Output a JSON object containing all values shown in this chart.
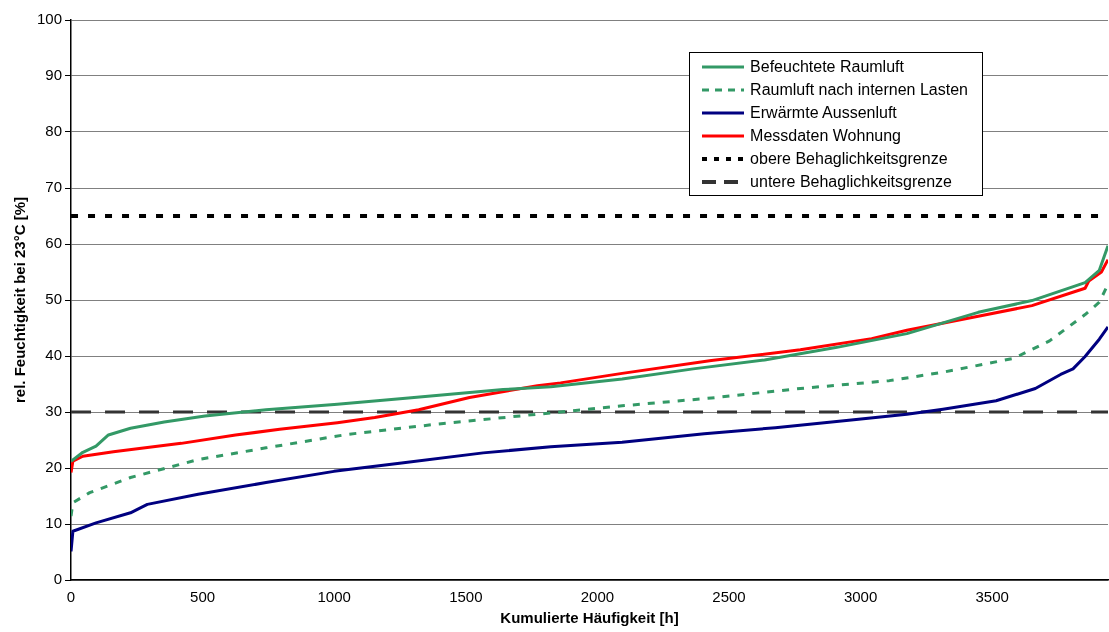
{
  "chart_data": {
    "type": "line",
    "xlabel": "Kumulierte Häufigkeit [h]",
    "ylabel": "rel. Feuchtigkeit bei 23°C [%]",
    "xlim": [
      0,
      3940
    ],
    "xticks": [
      0,
      500,
      1000,
      1500,
      2000,
      2500,
      3000,
      3500
    ],
    "ylim": [
      0,
      100
    ],
    "yticks": [
      0,
      10,
      20,
      30,
      40,
      50,
      60,
      70,
      80,
      90,
      100
    ],
    "grid": "y",
    "legend": "top right",
    "marker": "none",
    "series": [
      {
        "name": "Befeuchtete Raumluft",
        "color": "#339966",
        "line_style": "solid",
        "x": [
          0,
          45,
          95,
          142,
          226,
          354,
          509,
          741,
          1012,
          1282,
          1642,
          1823,
          2094,
          2364,
          2635,
          2905,
          3176,
          3447,
          3651,
          3853,
          3907,
          3940
        ],
        "values": [
          21.2,
          22.8,
          23.9,
          25.9,
          27.1,
          28.2,
          29.3,
          30.4,
          31.4,
          32.5,
          34.0,
          34.5,
          35.9,
          37.7,
          39.3,
          41.5,
          44.0,
          47.8,
          49.9,
          53.1,
          55.3,
          59.7
        ]
      },
      {
        "name": "Raumluft nach internen Lasten",
        "color": "#339966",
        "line_style": "dashed",
        "x": [
          0,
          7,
          71,
          226,
          483,
          741,
          1050,
          1385,
          1900,
          2094,
          2433,
          2771,
          3109,
          3313,
          3583,
          3718,
          3853,
          3907,
          3940
        ],
        "values": [
          11.4,
          13.8,
          15.6,
          18.3,
          21.5,
          23.6,
          26.0,
          27.8,
          30.2,
          31.1,
          32.5,
          34.2,
          35.6,
          37.1,
          39.6,
          42.7,
          47.4,
          49.6,
          52.8
        ]
      },
      {
        "name": "Erwärmte Aussenluft",
        "color": "#000080",
        "line_style": "solid",
        "x": [
          0,
          7,
          95,
          226,
          290,
          483,
          741,
          999,
          1256,
          1566,
          1823,
          2094,
          2406,
          2676,
          2974,
          3176,
          3313,
          3515,
          3664,
          3760,
          3807,
          3853,
          3907,
          3940
        ],
        "values": [
          5.1,
          8.7,
          10.2,
          12.0,
          13.5,
          15.3,
          17.4,
          19.4,
          20.9,
          22.7,
          23.8,
          24.6,
          26.1,
          27.2,
          28.6,
          29.6,
          30.5,
          32.0,
          34.2,
          36.7,
          37.7,
          39.9,
          43.0,
          45.2
        ]
      },
      {
        "name": "Messdaten Wohnung",
        "color": "#ff0000",
        "line_style": "solid",
        "x": [
          0,
          7,
          45,
          161,
          419,
          625,
          793,
          1012,
          1154,
          1321,
          1514,
          1772,
          1860,
          2094,
          2433,
          2771,
          3042,
          3176,
          3447,
          3651,
          3853,
          3867,
          3915,
          3940
        ],
        "values": [
          19.2,
          21.2,
          22.1,
          22.9,
          24.4,
          25.9,
          26.9,
          28.1,
          29.0,
          30.4,
          32.6,
          34.7,
          35.2,
          36.9,
          39.2,
          41.1,
          43.1,
          44.6,
          47.1,
          49.0,
          52.1,
          53.4,
          55.0,
          57.2
        ]
      }
    ],
    "ref_lines": [
      {
        "axis": "y",
        "value": 65,
        "label": "obere Behaglichkeitsgrenze",
        "color": "#000000",
        "line_style": "dotted"
      },
      {
        "axis": "y",
        "value": 30,
        "label": "untere Behaglichkeitsgrenze",
        "color": "#333333",
        "line_style": "dashed"
      }
    ]
  }
}
